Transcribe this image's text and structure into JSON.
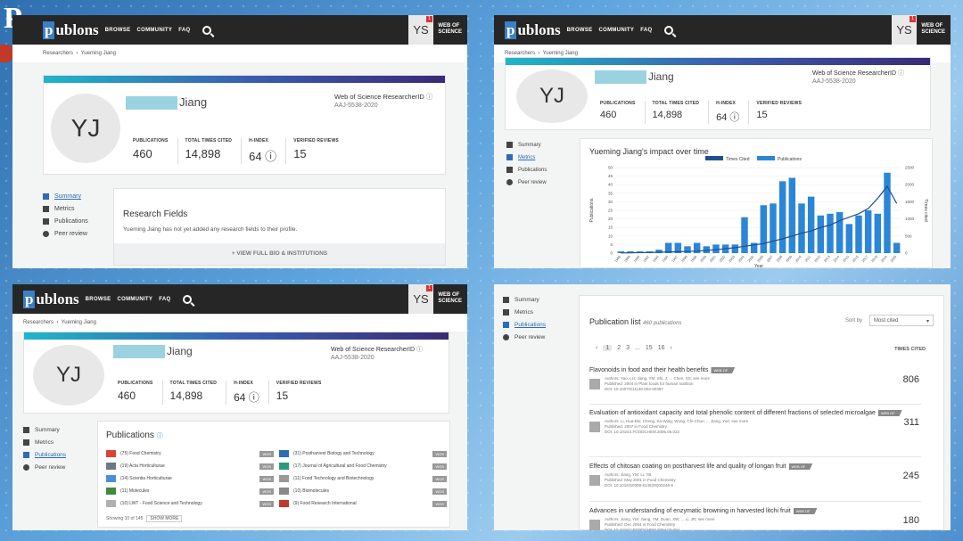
{
  "corner_text": "P",
  "app": {
    "logo_prefix": "p",
    "logo_rest": "ublons",
    "nav": [
      "BROWSE",
      "COMMUNITY",
      "FAQ"
    ],
    "user_initials": "YS",
    "notif": "1",
    "wos_line1": "WEB OF",
    "wos_line2": "SCIENCE"
  },
  "breadcrumb": {
    "root": "Researchers",
    "sep": "›",
    "current": "Yueming Jiang"
  },
  "profile": {
    "initials": "YJ",
    "surname": "Jiang",
    "rid_label": "Web of Science ResearcherID",
    "rid_info": "ⓘ",
    "rid": "AAJ-5538-2020",
    "stats": [
      {
        "label": "PUBLICATIONS",
        "value": "460"
      },
      {
        "label": "TOTAL TIMES CITED",
        "value": "14,898"
      },
      {
        "label": "H-INDEX",
        "value": "64 ⓘ"
      },
      {
        "label": "VERIFIED REVIEWS",
        "value": "15"
      }
    ]
  },
  "sidebar": {
    "items": [
      "Summary",
      "Metrics",
      "Publications",
      "Peer review"
    ]
  },
  "research": {
    "title": "Research Fields",
    "empty": "Yueming Jiang has not yet added any research fields to their profile.",
    "more": "+ VIEW FULL BIO & INSTITUTIONS"
  },
  "chart_data": {
    "type": "bar",
    "title": "Yueming Jiang's impact over time",
    "xlabel": "Year",
    "ylabel": "Publications",
    "y2label": "Times cited",
    "legend": [
      "Times Cited",
      "Publications"
    ],
    "legend_position": "top",
    "categories": [
      "1986",
      "1988",
      "1990",
      "1992",
      "1994",
      "1996",
      "1997",
      "1998",
      "1999",
      "2000",
      "2001",
      "2002",
      "2003",
      "2004",
      "2005",
      "2006",
      "2007",
      "2008",
      "2009",
      "2010",
      "2011",
      "2012",
      "2013",
      "2014",
      "2015",
      "2016",
      "2017",
      "2018",
      "2019",
      "2020"
    ],
    "series": [
      {
        "name": "Publications",
        "values": [
          1,
          1,
          1,
          1,
          2,
          6,
          6,
          4,
          6,
          4,
          5,
          5,
          5,
          21,
          6,
          28,
          29,
          42,
          44,
          29,
          33,
          22,
          23,
          24,
          17,
          22,
          25,
          23,
          47,
          6
        ]
      },
      {
        "name": "Times Cited",
        "values": [
          5,
          10,
          15,
          20,
          25,
          35,
          40,
          50,
          60,
          80,
          100,
          130,
          160,
          200,
          240,
          280,
          350,
          420,
          500,
          580,
          650,
          750,
          820,
          950,
          1050,
          1150,
          1300,
          1600,
          1950,
          1450
        ]
      }
    ],
    "ylim": [
      0,
      50
    ],
    "y2lim": [
      0,
      2500
    ],
    "yticks": [
      "50",
      "45",
      "40",
      "35",
      "30",
      "25",
      "20",
      "15",
      "10",
      "5",
      "0"
    ],
    "y2ticks": [
      "2500",
      "2000",
      "1500",
      "1000",
      "500",
      "0"
    ]
  },
  "pubfields": {
    "title": "Publications",
    "info": "ⓘ",
    "wos": "WOS",
    "showing": "Showing 10 of 145",
    "show_more": "SHOW MORE",
    "items": [
      "(75) Food Chemistry",
      "(31) Postharvest Biology and Technology",
      "(19) Acta Horticulturae",
      "(17) Journal of Agricultural and Food Chemistry",
      "(14) Scientia Horticulturae",
      "(11) Food Technology and Biotechnology",
      "(11) Molecules",
      "(10) Biomolecules",
      "(10) LWT - Food Science and Technology",
      "(9) Food Research International"
    ]
  },
  "publist": {
    "title": "Publication list",
    "count": "460 publications",
    "sort_label": "Sort by",
    "sort_value": "Most cited",
    "pages": [
      "‹",
      "1",
      "2",
      "3",
      "...",
      "15",
      "16",
      "›"
    ],
    "times_cited": "TIMES CITED",
    "wos": "WEB OF",
    "items": [
      {
        "title": "Flavonoids in food and their health benefits",
        "authors": "Authors:  Yao, LH; Jiang, YM; Shi, J; ... Chen, SS; see more",
        "published": "Published: 2004 in Plant foods for human nutrition",
        "doi": "DOI: 10.1007/S11130-004-00497",
        "cites": "806"
      },
      {
        "title": "Evaluation of antioxidant capacity and total phenolic content of different fractions of selected microalgae",
        "authors": "Authors:  Li, Hua-Bin; Cheng, Ka-Wing; Wong, Chi-Chun; ... Jiang, Yue; see more",
        "published": "Published: 2007 in Food Chemistry",
        "doi": "DOI: 10.1016/J.FOODCHEM.2006.06.022",
        "cites": "311"
      },
      {
        "title": "Effects of chitosan coating on postharvest life and quality of longan fruit",
        "authors": "Authors:  Jiang, YM; Li, YB",
        "published": "Published: May 2001 in Food Chemistry",
        "doi": "DOI: 10.1016/S0308-8146(00)00246-6",
        "cites": "245"
      },
      {
        "title": "Advances in understanding of enzymatic browning in harvested litchi fruit",
        "authors": "Authors:  Jiang, YM; Jiang, YM; Duan, XW; ... Li, JR; see more",
        "published": "Published: Dec 2004 in Food Chemistry",
        "doi": "DOI: 10.1016/J.FOODCHEM.2004.02.004",
        "cites": "180"
      }
    ]
  },
  "colors": {
    "topbar": "#262626",
    "accent": "#2a6db5",
    "bar": "#2b86d8",
    "line": "#1f4f8f"
  }
}
